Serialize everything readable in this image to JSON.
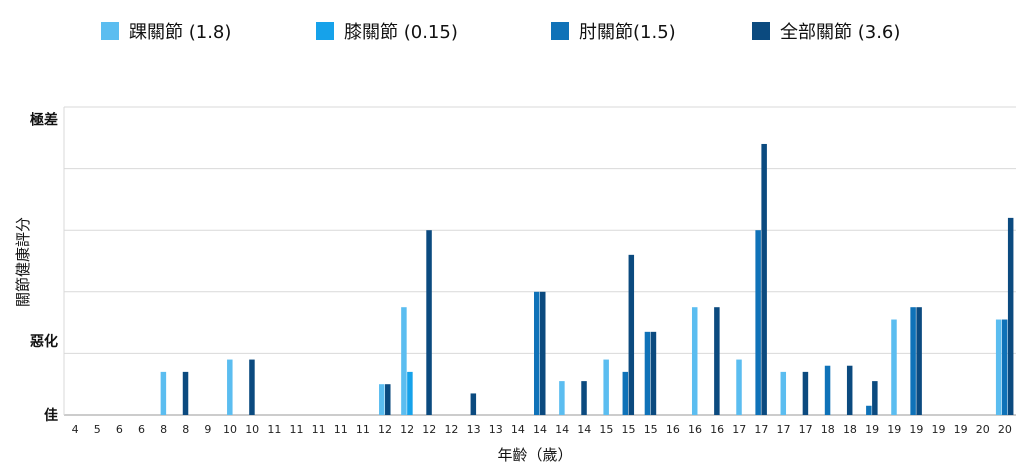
{
  "chart_data": {
    "type": "bar",
    "xlabel": "年齡（歲）",
    "ylabel": "關節健康評分",
    "ylim": [
      0,
      5
    ],
    "grid": true,
    "legend_position": "top",
    "y_axis_labels": [
      {
        "label": "佳",
        "value": 0
      },
      {
        "label": "惡化",
        "value": 1.2
      },
      {
        "label": "極差",
        "value": 4.8
      }
    ],
    "categories": [
      "4",
      "5",
      "6",
      "6",
      "8",
      "8",
      "9",
      "10",
      "10",
      "11",
      "11",
      "11",
      "11",
      "11",
      "12",
      "12",
      "12",
      "12",
      "13",
      "13",
      "14",
      "14",
      "14",
      "14",
      "15",
      "15",
      "15",
      "16",
      "16",
      "16",
      "17",
      "17",
      "17",
      "17",
      "18",
      "18",
      "19",
      "19",
      "19",
      "19",
      "19",
      "20",
      "20"
    ],
    "series": [
      {
        "name": "踝關節 (1.8)",
        "color": "#5BBDF0",
        "values": [
          0,
          0,
          0,
          0,
          0.7,
          0,
          0,
          0.9,
          0,
          0,
          0,
          0,
          0,
          0,
          0.5,
          1.75,
          0,
          0,
          0,
          0,
          0,
          0,
          0.55,
          0,
          0.9,
          0,
          0,
          0,
          1.75,
          0,
          0.9,
          0,
          0.7,
          0,
          0,
          0,
          0,
          1.55,
          0,
          0,
          0,
          0,
          1.55
        ]
      },
      {
        "name": "膝關節 (0.15)",
        "color": "#16A2EA",
        "values": [
          0,
          0,
          0,
          0,
          0,
          0,
          0,
          0,
          0,
          0,
          0,
          0,
          0,
          0,
          0,
          0.7,
          0,
          0,
          0,
          0,
          0,
          0,
          0,
          0,
          0,
          0,
          0,
          0,
          0,
          0,
          0,
          0,
          0,
          0,
          0,
          0,
          0,
          0,
          0,
          0,
          0,
          0,
          0
        ]
      },
      {
        "name": "肘關節(1.5)",
        "color": "#0F72B8",
        "values": [
          0,
          0,
          0,
          0,
          0,
          0,
          0,
          0,
          0,
          0,
          0,
          0,
          0,
          0,
          0,
          0,
          0,
          0,
          0,
          0,
          0,
          2.0,
          0,
          0,
          0,
          0.7,
          1.35,
          0,
          0,
          0,
          0,
          3.0,
          0,
          0,
          0.8,
          0,
          0.15,
          0,
          1.75,
          0,
          0,
          0,
          1.55
        ]
      },
      {
        "name": "全部關節 (3.6)",
        "color": "#0B4A7F",
        "values": [
          0,
          0,
          0,
          0,
          0,
          0.7,
          0,
          0,
          0.9,
          0,
          0,
          0,
          0,
          0,
          0.5,
          0,
          3.0,
          0,
          0.35,
          0,
          0,
          2.0,
          0,
          0.55,
          0,
          2.6,
          1.35,
          0,
          0,
          1.75,
          0,
          4.4,
          0,
          0.7,
          0,
          0.8,
          0.55,
          0,
          1.75,
          0,
          0,
          0,
          3.2
        ]
      }
    ]
  }
}
